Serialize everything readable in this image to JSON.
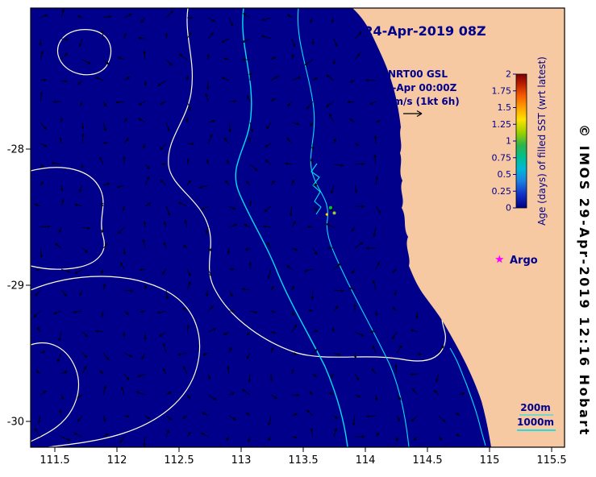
{
  "figure": {
    "title": "24-Apr-2019 08Z",
    "annotation": {
      "line1": "NRT00 GSL",
      "line2": "24-Apr 00:00Z",
      "line3": "0.5m/s (1kt 6h)"
    },
    "argo_label": "Argo",
    "legend": {
      "depth_200": "200m",
      "depth_1000": "1000m"
    },
    "colorbar_label": "Age (days) of filled SST (wrt latest)",
    "watermark": "© IMOS 29-Apr-2019 12:16 Hobart"
  },
  "chart_data": {
    "type": "map",
    "description": "Ocean surface current vectors with sea-level contours, 200m/1000m bathymetry and age of filled SST off the Western Australia coast",
    "x_axis": {
      "unit": "degrees E",
      "range": [
        111.3,
        115.6
      ],
      "tick_values": [
        111.5,
        112,
        112.5,
        113,
        113.5,
        114,
        114.5,
        115,
        115.5
      ],
      "tick_labels": [
        "111.5",
        "112",
        "112.5",
        "113",
        "113.5",
        "114",
        "114.5",
        "115",
        "115.5"
      ]
    },
    "y_axis": {
      "unit": "degrees N",
      "range": [
        -30.2,
        -27.0
      ],
      "tick_values": [
        -28,
        -29,
        -30
      ],
      "tick_labels": [
        "-28",
        "-29",
        "-30"
      ]
    },
    "colorbar": {
      "min": 0,
      "max": 2,
      "label": "Age (days) of filled SST (wrt latest)",
      "tick_values": [
        2,
        1.75,
        1.5,
        1.25,
        1,
        0.75,
        0.5,
        0.25,
        0
      ],
      "tick_labels": [
        "2",
        "1.75",
        "1.5",
        "1.25",
        "1",
        "0.75",
        "0.5",
        "0.25",
        "0"
      ],
      "gradient": [
        {
          "offset": 0,
          "color": "#7F0000"
        },
        {
          "offset": 0.07,
          "color": "#B71C00"
        },
        {
          "offset": 0.16,
          "color": "#F55A00"
        },
        {
          "offset": 0.25,
          "color": "#FFA000"
        },
        {
          "offset": 0.34,
          "color": "#FFE200"
        },
        {
          "offset": 0.44,
          "color": "#9ACF00"
        },
        {
          "offset": 0.53,
          "color": "#2EB34B"
        },
        {
          "offset": 0.62,
          "color": "#00BF8F"
        },
        {
          "offset": 0.71,
          "color": "#00B7D8"
        },
        {
          "offset": 0.8,
          "color": "#1E7FE0"
        },
        {
          "offset": 0.9,
          "color": "#1031C8"
        },
        {
          "offset": 1,
          "color": "#000082"
        }
      ]
    },
    "markers": [
      {
        "name": "Argo",
        "lon": 115.08,
        "lat": -28.81,
        "symbol": "star",
        "color": "#FF00FF"
      }
    ],
    "sst_age_patches": [
      {
        "lon": 113.72,
        "lat": -28.43,
        "color": "#00C832",
        "r": 2
      },
      {
        "lon": 113.75,
        "lat": -28.47,
        "color": "#9ACD32",
        "r": 2
      },
      {
        "lon": 113.69,
        "lat": -28.48,
        "color": "#FFD200",
        "r": 1.6
      }
    ],
    "bathymetry_contours": [
      "200m",
      "1000m"
    ],
    "vector_key": {
      "speed": "0.5m/s",
      "equivalence": "1kt 6h"
    }
  },
  "vectors": {
    "spacing": 26,
    "min_len": 5,
    "max_len": 12
  },
  "colors": {
    "ocean": "#00008B",
    "land": "#F6C9A2",
    "sla_contour": "#FFFFE0",
    "bathymetry": "#00E0F0",
    "vectors": "#000000",
    "text": "#00008B",
    "axis_text": "#000000",
    "argo_marker": "#FF00FF"
  }
}
